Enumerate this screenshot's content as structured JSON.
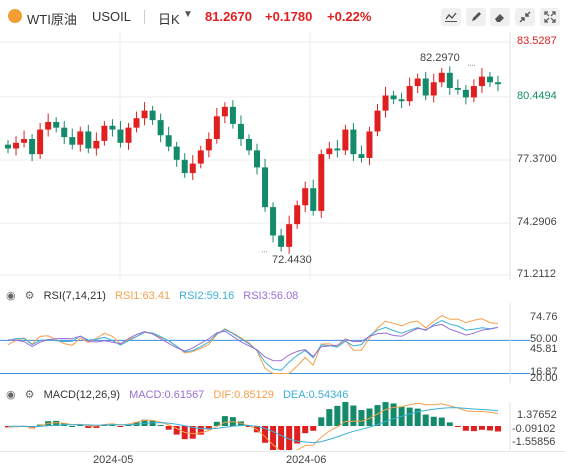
{
  "header": {
    "symbol_name": "WTI原油",
    "symbol_code": "USOIL",
    "period": "日K",
    "price": "81.2670",
    "change": "+0.1780",
    "change_pct": "+0.22%",
    "tools": [
      {
        "icon": "line-chart-icon"
      },
      {
        "icon": "pencil-icon"
      },
      {
        "icon": "eraser-icon"
      },
      {
        "icon": "collapse-icon"
      },
      {
        "icon": "expand-icon"
      }
    ]
  },
  "main_chart": {
    "price_labels": [
      "83.5287",
      "80.4494",
      "77.3700",
      "74.2906",
      "71.2112"
    ],
    "ylim": [
      71.2112,
      83.5287
    ],
    "high_marker": "82.2970",
    "low_marker": "72.4430"
  },
  "rsi": {
    "name": "RSI(7,14,21)",
    "rsi1": "RSI1:63.41",
    "rsi2": "RSI2:59.16",
    "rsi3": "RSI3:56.08",
    "labels": [
      "74.76",
      "50.00",
      "45.81",
      "16.87",
      "20.00"
    ],
    "colors": {
      "rsi1": "#f5a04a",
      "rsi2": "#3bb0d8",
      "rsi3": "#9b6fd6",
      "level": "#3a8de0"
    }
  },
  "macd": {
    "name": "MACD(12,26,9)",
    "macd": "MACD:0.61567",
    "dif": "DIF:0.85129",
    "dea": "DEA:0.54346",
    "labels": [
      "1.37652",
      "-0.09102",
      "-1.55856"
    ],
    "colors": {
      "macd": "#9b6fd6",
      "dif": "#f5a04a",
      "dea": "#3bb0d8"
    }
  },
  "x_axis": {
    "labels": [
      "2024-05",
      "2024-06"
    ]
  },
  "colors": {
    "up": "#e02020",
    "down": "#138a6a",
    "accent": "#2a7ee0"
  }
}
